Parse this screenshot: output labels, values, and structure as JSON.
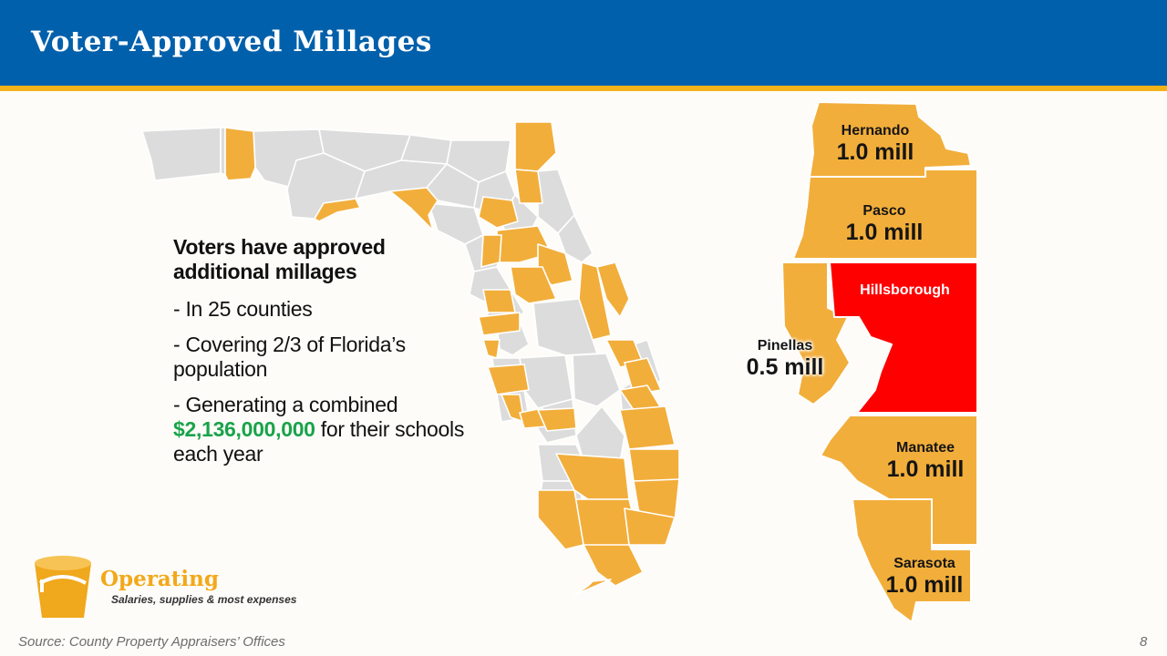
{
  "slide": {
    "title": "Voter-Approved  Millages",
    "page_number": "8"
  },
  "summary": {
    "lead": "Voters have approved additional millages",
    "bullets": [
      "- In 25 counties",
      "- Covering 2/3 of Florida’s population"
    ],
    "last_bullet_prefix": "- Generating a combined ",
    "amount": "$2,136,000,000",
    "last_bullet_suffix": " for their schools each year"
  },
  "counties": [
    {
      "name": "Hernando",
      "millage": "1.0 mill"
    },
    {
      "name": "Pasco",
      "millage": "1.0 mill"
    },
    {
      "name": "Hillsborough",
      "millage": ""
    },
    {
      "name": "Pinellas",
      "millage": "0.5 mill"
    },
    {
      "name": "Manatee",
      "millage": "1.0 mill"
    },
    {
      "name": "Sarasota",
      "millage": "1.0 mill"
    }
  ],
  "colors": {
    "approved": "#f2ae3b",
    "not_approved": "#dcdcdc",
    "highlight": "#ff0000",
    "header": "#0160ab",
    "accent": "#f3b21a",
    "amount": "#19a34a"
  },
  "logo": {
    "icon": "bucket-icon",
    "title": "Operating",
    "subtitle": "Salaries, supplies & most expenses"
  },
  "footer": {
    "source": "Source: County Property Appraisers’ Offices"
  }
}
